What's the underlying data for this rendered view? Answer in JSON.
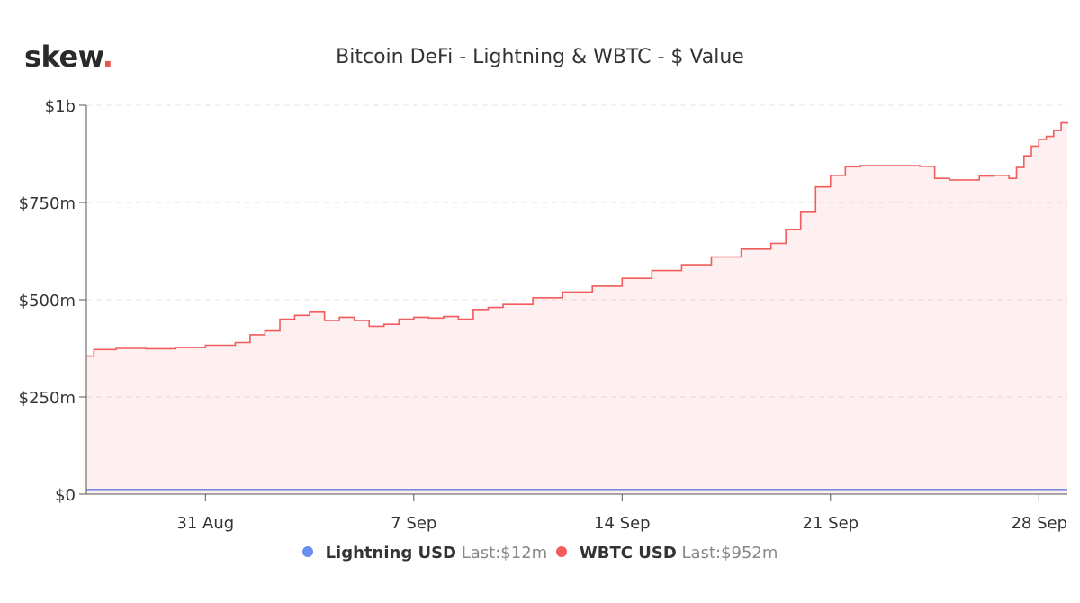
{
  "brand": {
    "logo_text": "skew",
    "logo_dot": ".",
    "accent_color": "#e8534f"
  },
  "chart_data": {
    "type": "area",
    "title": "Bitcoin DeFi - Lightning & WBTC - $ Value",
    "xlabel": "",
    "ylabel": "",
    "x_range": [
      "2020-08-27",
      "2020-09-28"
    ],
    "ylim": [
      0,
      1000000000
    ],
    "y_ticks": [
      {
        "value": 0,
        "label": "$0"
      },
      {
        "value": 250000000,
        "label": "$250m"
      },
      {
        "value": 500000000,
        "label": "$500m"
      },
      {
        "value": 750000000,
        "label": "$750m"
      },
      {
        "value": 1000000000,
        "label": "$1b"
      }
    ],
    "x_ticks": [
      {
        "date": "2020-08-31",
        "label": "31 Aug"
      },
      {
        "date": "2020-09-07",
        "label": "7 Sep"
      },
      {
        "date": "2020-09-14",
        "label": "14 Sep"
      },
      {
        "date": "2020-09-21",
        "label": "21 Sep"
      },
      {
        "date": "2020-09-28",
        "label": "28 Sep"
      }
    ],
    "grid": "horizontal-dashed",
    "legend_position": "bottom-center",
    "series": [
      {
        "name": "Lightning USD",
        "last_label": "Last:",
        "last_value": "$12m",
        "color": "#6b8ff0",
        "fill": false,
        "points": [
          [
            "2020-08-27",
            12000000
          ],
          [
            "2020-09-28",
            12000000
          ]
        ]
      },
      {
        "name": "WBTC USD",
        "last_label": "Last:",
        "last_value": "$952m",
        "color": "#f25c5c",
        "fill": true,
        "points": [
          [
            "2020-08-27",
            355000000
          ],
          [
            "2020-08-27T06",
            372000000
          ],
          [
            "2020-08-28",
            375000000
          ],
          [
            "2020-08-29",
            374000000
          ],
          [
            "2020-08-30",
            377000000
          ],
          [
            "2020-08-31",
            383000000
          ],
          [
            "2020-09-01",
            390000000
          ],
          [
            "2020-09-01T12",
            410000000
          ],
          [
            "2020-09-02",
            420000000
          ],
          [
            "2020-09-02T12",
            450000000
          ],
          [
            "2020-09-03",
            460000000
          ],
          [
            "2020-09-03T12",
            468000000
          ],
          [
            "2020-09-04",
            447000000
          ],
          [
            "2020-09-04T12",
            455000000
          ],
          [
            "2020-09-05",
            447000000
          ],
          [
            "2020-09-05T12",
            432000000
          ],
          [
            "2020-09-06",
            437000000
          ],
          [
            "2020-09-06T12",
            450000000
          ],
          [
            "2020-09-07",
            455000000
          ],
          [
            "2020-09-07T12",
            453000000
          ],
          [
            "2020-09-08",
            457000000
          ],
          [
            "2020-09-08T12",
            450000000
          ],
          [
            "2020-09-09",
            475000000
          ],
          [
            "2020-09-09T12",
            480000000
          ],
          [
            "2020-09-10",
            488000000
          ],
          [
            "2020-09-11",
            505000000
          ],
          [
            "2020-09-12",
            520000000
          ],
          [
            "2020-09-13",
            535000000
          ],
          [
            "2020-09-14",
            555000000
          ],
          [
            "2020-09-15",
            575000000
          ],
          [
            "2020-09-16",
            590000000
          ],
          [
            "2020-09-17",
            610000000
          ],
          [
            "2020-09-18",
            630000000
          ],
          [
            "2020-09-19",
            645000000
          ],
          [
            "2020-09-19T12",
            680000000
          ],
          [
            "2020-09-20",
            725000000
          ],
          [
            "2020-09-20T12",
            790000000
          ],
          [
            "2020-09-21",
            820000000
          ],
          [
            "2020-09-21T12",
            842000000
          ],
          [
            "2020-09-22",
            845000000
          ],
          [
            "2020-09-23",
            845000000
          ],
          [
            "2020-09-24",
            843000000
          ],
          [
            "2020-09-24T12",
            812000000
          ],
          [
            "2020-09-25",
            808000000
          ],
          [
            "2020-09-26",
            818000000
          ],
          [
            "2020-09-26T12",
            820000000
          ],
          [
            "2020-09-27",
            812000000
          ],
          [
            "2020-09-27T06",
            840000000
          ],
          [
            "2020-09-27T12",
            870000000
          ],
          [
            "2020-09-27T18",
            895000000
          ],
          [
            "2020-09-28",
            912000000
          ],
          [
            "2020-09-28T06",
            920000000
          ],
          [
            "2020-09-28T12",
            935000000
          ],
          [
            "2020-09-28T18",
            955000000
          ],
          [
            "2020-09-28T23",
            952000000
          ]
        ]
      }
    ]
  }
}
